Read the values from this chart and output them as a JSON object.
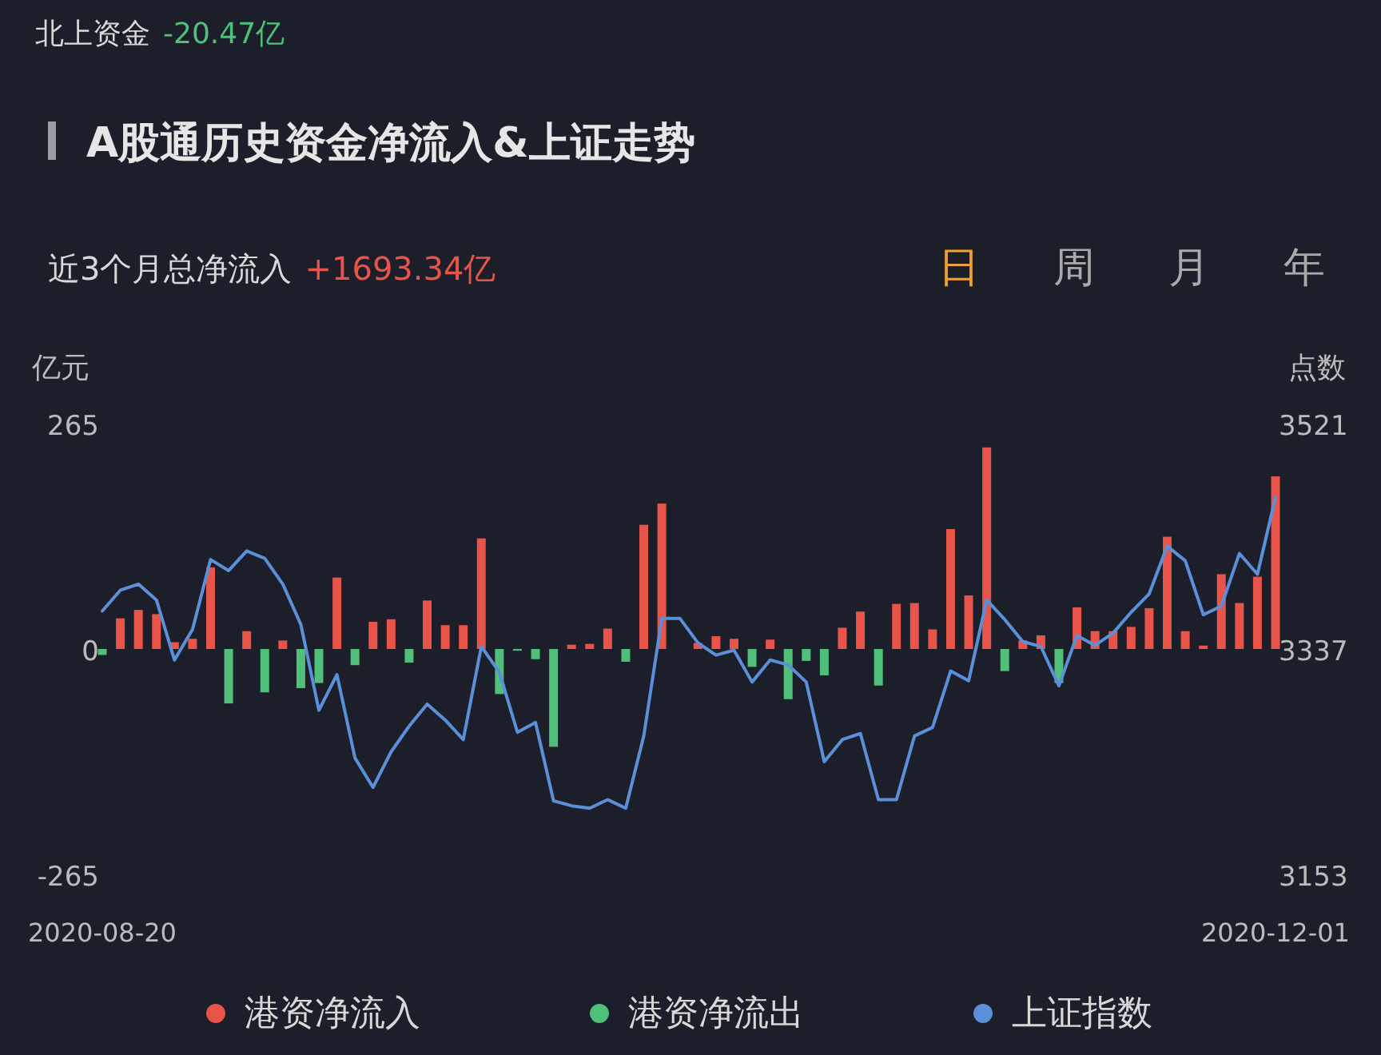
{
  "chart_data": {
    "type": "bar",
    "title": "A股通历史资金净流入&上证走势",
    "annotations": [
      "北上资金",
      "-20.47亿",
      "近3个月总净流入",
      "+1693.34亿",
      "日",
      "周",
      "月",
      "年"
    ],
    "ylabel": "亿元",
    "y2label": "点数",
    "categories": [
      "2020-08-20",
      null,
      null,
      null,
      null,
      null,
      null,
      null,
      null,
      null,
      null,
      null,
      null,
      null,
      null,
      null,
      null,
      null,
      null,
      null,
      null,
      null,
      null,
      null,
      null,
      null,
      null,
      null,
      null,
      null,
      null,
      null,
      null,
      null,
      null,
      null,
      null,
      null,
      null,
      null,
      null,
      null,
      null,
      null,
      null,
      null,
      null,
      null,
      null,
      null,
      null,
      null,
      null,
      null,
      null,
      null,
      null,
      null,
      null,
      null,
      null,
      null,
      null,
      null,
      null,
      "2020-12-01"
    ],
    "ylim": [
      -265,
      265
    ],
    "yticks": [
      -265,
      0,
      265
    ],
    "y2lim": [
      3153,
      3521
    ],
    "y2ticks": [
      3153,
      3337,
      3521
    ],
    "legend": "bottom",
    "series": [
      {
        "name": "港资净流入",
        "type": "bar",
        "color": "#e8534a",
        "values": [
          null,
          36,
          46,
          41,
          8,
          12,
          96,
          null,
          21,
          null,
          10,
          null,
          null,
          84,
          null,
          32,
          35,
          null,
          57,
          28,
          28,
          130,
          null,
          null,
          null,
          null,
          5,
          6,
          24,
          null,
          146,
          171,
          null,
          7,
          15,
          12,
          null,
          11,
          null,
          null,
          null,
          25,
          44,
          null,
          53,
          54,
          23,
          141,
          63,
          237,
          null,
          10,
          16,
          null,
          49,
          21,
          21,
          26,
          48,
          132,
          21,
          4,
          88,
          54,
          85,
          203
        ]
      },
      {
        "name": "港资净流出",
        "type": "bar",
        "color": "#4fbf7a",
        "values": [
          -7,
          null,
          null,
          null,
          null,
          null,
          null,
          -64,
          null,
          -51,
          null,
          -46,
          -40,
          null,
          -19,
          null,
          null,
          -16,
          null,
          null,
          null,
          null,
          -53,
          -2,
          -12,
          -115,
          null,
          null,
          null,
          -15,
          null,
          null,
          null,
          null,
          null,
          null,
          -21,
          null,
          -59,
          -14,
          -31,
          null,
          null,
          -43,
          null,
          null,
          null,
          null,
          null,
          null,
          -26,
          null,
          null,
          -40,
          null,
          null,
          null,
          null,
          null,
          null,
          null,
          null,
          null,
          null,
          null,
          null
        ]
      },
      {
        "name": "上证指数",
        "type": "line",
        "axis": "y2",
        "color": "#5b8fd8",
        "values": [
          3368,
          3385,
          3390,
          3377,
          3328,
          3353,
          3410,
          3401,
          3417,
          3411,
          3390,
          3357,
          3287,
          3316,
          3248,
          3224,
          3253,
          3274,
          3292,
          3279,
          3263,
          3339,
          3318,
          3269,
          3277,
          3213,
          3209,
          3207,
          3214,
          3207,
          3266,
          3362,
          3362,
          3342,
          3332,
          3336,
          3310,
          3328,
          3324,
          3310,
          3245,
          3263,
          3268,
          3214,
          3214,
          3266,
          3273,
          3319,
          3311,
          3377,
          3361,
          3343,
          3339,
          3307,
          3348,
          3340,
          3350,
          3367,
          3382,
          3421,
          3409,
          3365,
          3372,
          3415,
          3398,
          3461
        ]
      }
    ]
  }
}
